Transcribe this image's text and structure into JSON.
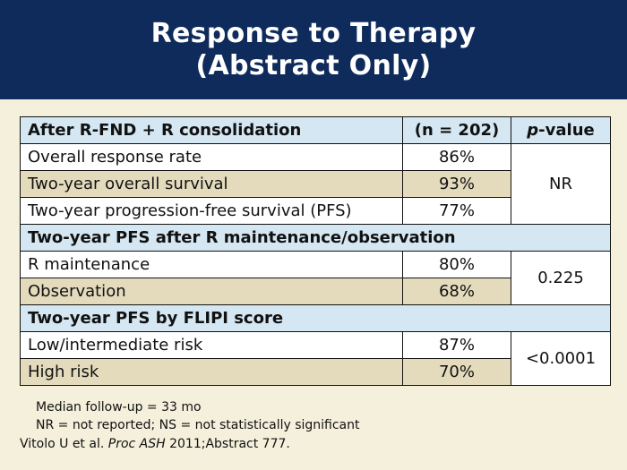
{
  "title": {
    "line1": "Response to Therapy",
    "line2": "(Abstract Only)"
  },
  "table": {
    "header": {
      "label": "After R-FND + R consolidation",
      "n": "(n = 202)",
      "p_italic": "p",
      "p_rest": "-value"
    },
    "group1": {
      "rows": [
        {
          "label": "Overall response rate",
          "value": "86%"
        },
        {
          "label": "Two-year overall survival",
          "value": "93%"
        },
        {
          "label": "Two-year progression-free survival (PFS)",
          "value": "77%"
        }
      ],
      "p_value": "NR"
    },
    "section2": "Two-year PFS after R maintenance/observation",
    "group2": {
      "rows": [
        {
          "label": "R maintenance",
          "value": "80%"
        },
        {
          "label": "Observation",
          "value": "68%"
        }
      ],
      "p_value": "0.225"
    },
    "section3": "Two-year PFS by FLIPI score",
    "group3": {
      "rows": [
        {
          "label": "Low/intermediate risk",
          "value": "87%"
        },
        {
          "label": "High risk",
          "value": "70%"
        }
      ],
      "p_value": "<0.0001"
    }
  },
  "notes": {
    "line1": "Median follow-up = 33 mo",
    "line2": "NR = not reported; NS = not statistically significant"
  },
  "citation": {
    "authors": "Vitolo U et al.",
    "journal": "Proc ASH",
    "rest": "2011;Abstract 777."
  }
}
